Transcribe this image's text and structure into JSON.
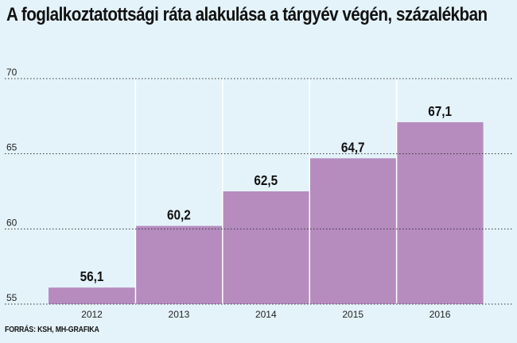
{
  "title": "A foglalkoztatottsági ráta alakulása a tárgyév végén, százalékban",
  "source": "FORRÁS: KSH, MH-GRAFIKA",
  "colors": {
    "background": "#e4f3fa",
    "bar": "#b68cbf",
    "grid": "#333333"
  },
  "chart_data": {
    "type": "bar",
    "title": "A foglalkoztatottsági ráta alakulása a tárgyév végén, százalékban",
    "xlabel": "",
    "ylabel": "",
    "categories": [
      "2012",
      "2013",
      "2014",
      "2015",
      "2016"
    ],
    "values": [
      56.1,
      60.2,
      62.5,
      64.7,
      67.1
    ],
    "value_labels": [
      "56,1",
      "60,2",
      "62,5",
      "64,7",
      "67,1"
    ],
    "yticks": [
      55,
      60,
      65,
      70
    ],
    "ytick_labels": [
      "55",
      "60",
      "65",
      "70"
    ],
    "ylim": [
      55,
      70
    ],
    "grid": "horizontal dotted",
    "legend": "none"
  }
}
